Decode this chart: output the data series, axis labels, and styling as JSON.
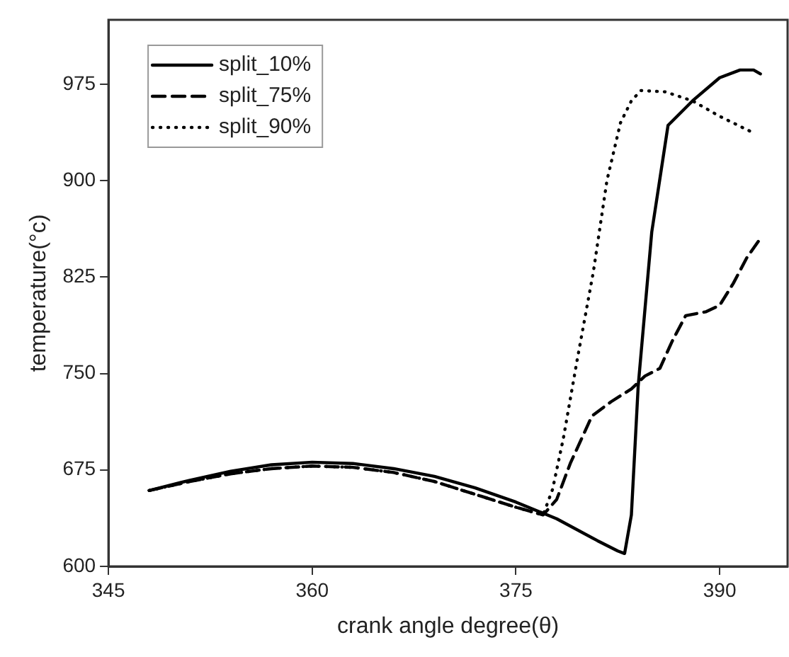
{
  "chart_data": {
    "type": "line",
    "xlabel": "crank angle degree(θ)",
    "ylabel": "temperature(°c)",
    "xlim": [
      345,
      395
    ],
    "xticks": [
      345,
      360,
      375,
      390
    ],
    "ylim": [
      600,
      1025
    ],
    "yticks": [
      600,
      675,
      750,
      825,
      900,
      975
    ],
    "grid": false,
    "legend": "top left",
    "marker": "none",
    "series": [
      {
        "name": "split_10%",
        "color": "#000000",
        "line_style": "solid",
        "x": [
          348,
          351,
          354,
          357,
          360,
          363,
          366,
          369,
          372,
          375,
          378,
          381,
          382.5,
          383,
          383.5,
          384,
          385,
          386.2,
          388,
          390,
          391.5,
          392.5,
          393
        ],
        "values": [
          659,
          667,
          674,
          679,
          681,
          680,
          676,
          670,
          661,
          650,
          637,
          620,
          612,
          610,
          640,
          740,
          860,
          943,
          962,
          980,
          986,
          986,
          983
        ]
      },
      {
        "name": "split_75%",
        "color": "#000000",
        "line_style": "dashed",
        "x": [
          348,
          351,
          354,
          357,
          360,
          363,
          366,
          369,
          372,
          375,
          377,
          378,
          379,
          380.6,
          382,
          383.5,
          384.5,
          385.6,
          386.5,
          387.5,
          389,
          390,
          391,
          392,
          393
        ],
        "values": [
          659,
          666,
          672,
          676,
          678,
          677,
          673,
          666,
          656,
          646,
          640,
          652,
          680,
          717,
          728,
          738,
          748,
          754,
          775,
          795,
          798,
          803,
          820,
          840,
          855
        ]
      },
      {
        "name": "split_90%",
        "color": "#000000",
        "line_style": "dotted",
        "x": [
          348,
          351,
          354,
          357,
          360,
          363,
          366,
          369,
          372,
          375,
          377,
          377.7,
          378.5,
          379.5,
          380.7,
          381.7,
          382.7,
          383.5,
          384.2,
          386,
          388,
          390,
          392.5
        ],
        "values": [
          659,
          666,
          672,
          676,
          678,
          677,
          673,
          666,
          656,
          646,
          640,
          660,
          700,
          760,
          829,
          900,
          945,
          962,
          970,
          969,
          962,
          950,
          937
        ]
      }
    ]
  }
}
